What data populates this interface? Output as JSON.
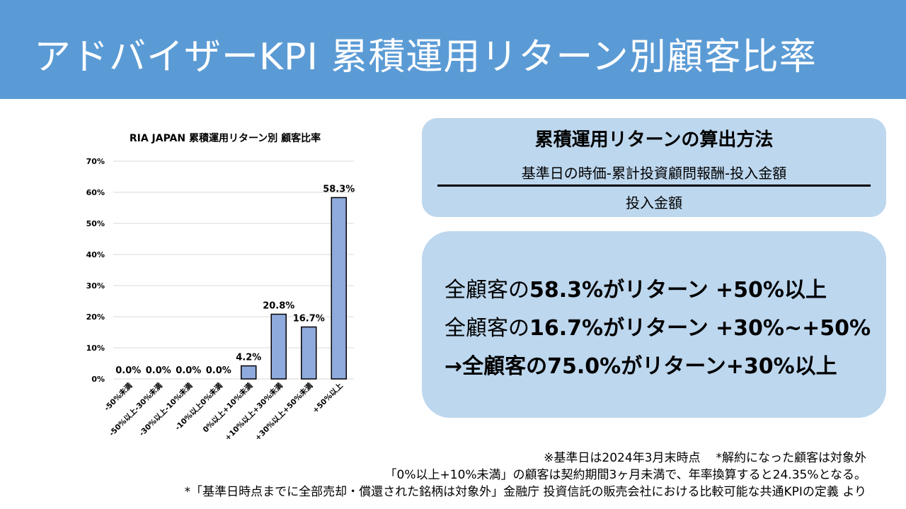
{
  "header": {
    "title": "アドバイザーKPI 累積運用リターン別顧客比率"
  },
  "chart_data": {
    "type": "bar",
    "title": "RIA JAPAN 累積運用リターン別 顧客比率",
    "categories": [
      "-50%未満",
      "-50%以上-30%未満",
      "-30%以上-10%未満",
      "-10%以上0%未満",
      "0%以上+10%未満",
      "+10%以上+30%未満",
      "+30%以上+50%未満",
      "+50%以上"
    ],
    "values": [
      0.0,
      0.0,
      0.0,
      0.0,
      4.2,
      20.8,
      16.7,
      58.3
    ],
    "data_labels": [
      "0.0%",
      "0.0%",
      "0.0%",
      "0.0%",
      "4.2%",
      "20.8%",
      "16.7%",
      "58.3%"
    ],
    "yticks": [
      "0%",
      "10%",
      "20%",
      "30%",
      "40%",
      "50%",
      "60%",
      "70%"
    ],
    "ylim": [
      0,
      70
    ],
    "xlabel": "",
    "ylabel": "",
    "grid": true,
    "bar_color": "#8faadc"
  },
  "formula": {
    "title": "累積運用リターンの算出方法",
    "numerator": "基準日の時価-累計投資顧問報酬-投入金額",
    "denominator": "投入金額"
  },
  "summary": {
    "line1": {
      "prefix": "全顧客の",
      "highlight": "58.3%がリターン +50%以上"
    },
    "line2": {
      "prefix": "全顧客の",
      "highlight": "16.7%がリターン +30%~+50%"
    },
    "line3": "→全顧客の75.0%がリターン+30%以上"
  },
  "footnotes": {
    "note1a": "※基準日は2024年3月末時点",
    "note1b": "*解約になった顧客は対象外",
    "note2": "「0%以上+10%未満」の顧客は契約期間3ヶ月未満で、年率換算すると24.35%となる。",
    "note3": "*「基準日時点までに全部売却・償還された銘柄は対象外」金融庁 投資信託の販売会社における比較可能な共通KPIの定義 より"
  },
  "colors": {
    "header_bg": "#5b9bd5",
    "box_bg": "#bdd7ee",
    "bar": "#8faadc"
  }
}
